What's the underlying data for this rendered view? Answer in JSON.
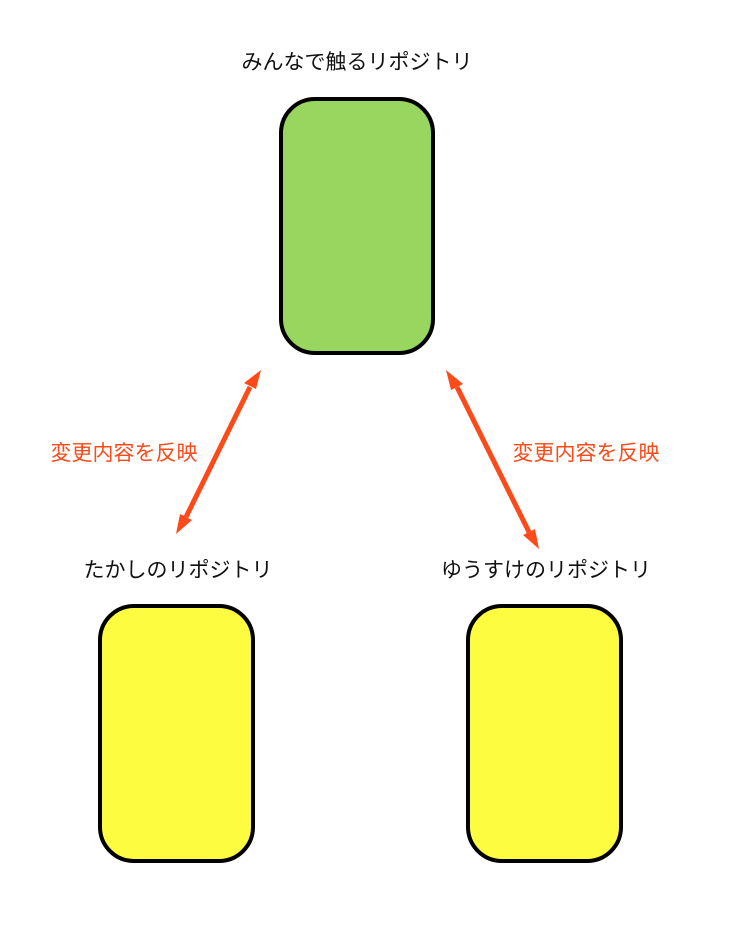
{
  "repos": {
    "shared": {
      "label": "みんなで触るリポジトリ",
      "color": "#98d660"
    },
    "takashi": {
      "label": "たかしのリポジトリ",
      "color": "#fdfc40"
    },
    "yusuke": {
      "label": "ゆうすけのリポジトリ",
      "color": "#fdfc40"
    }
  },
  "arrows": {
    "left_label": "変更内容を反映",
    "right_label": "変更内容を反映",
    "color": "#fc4a1a"
  }
}
